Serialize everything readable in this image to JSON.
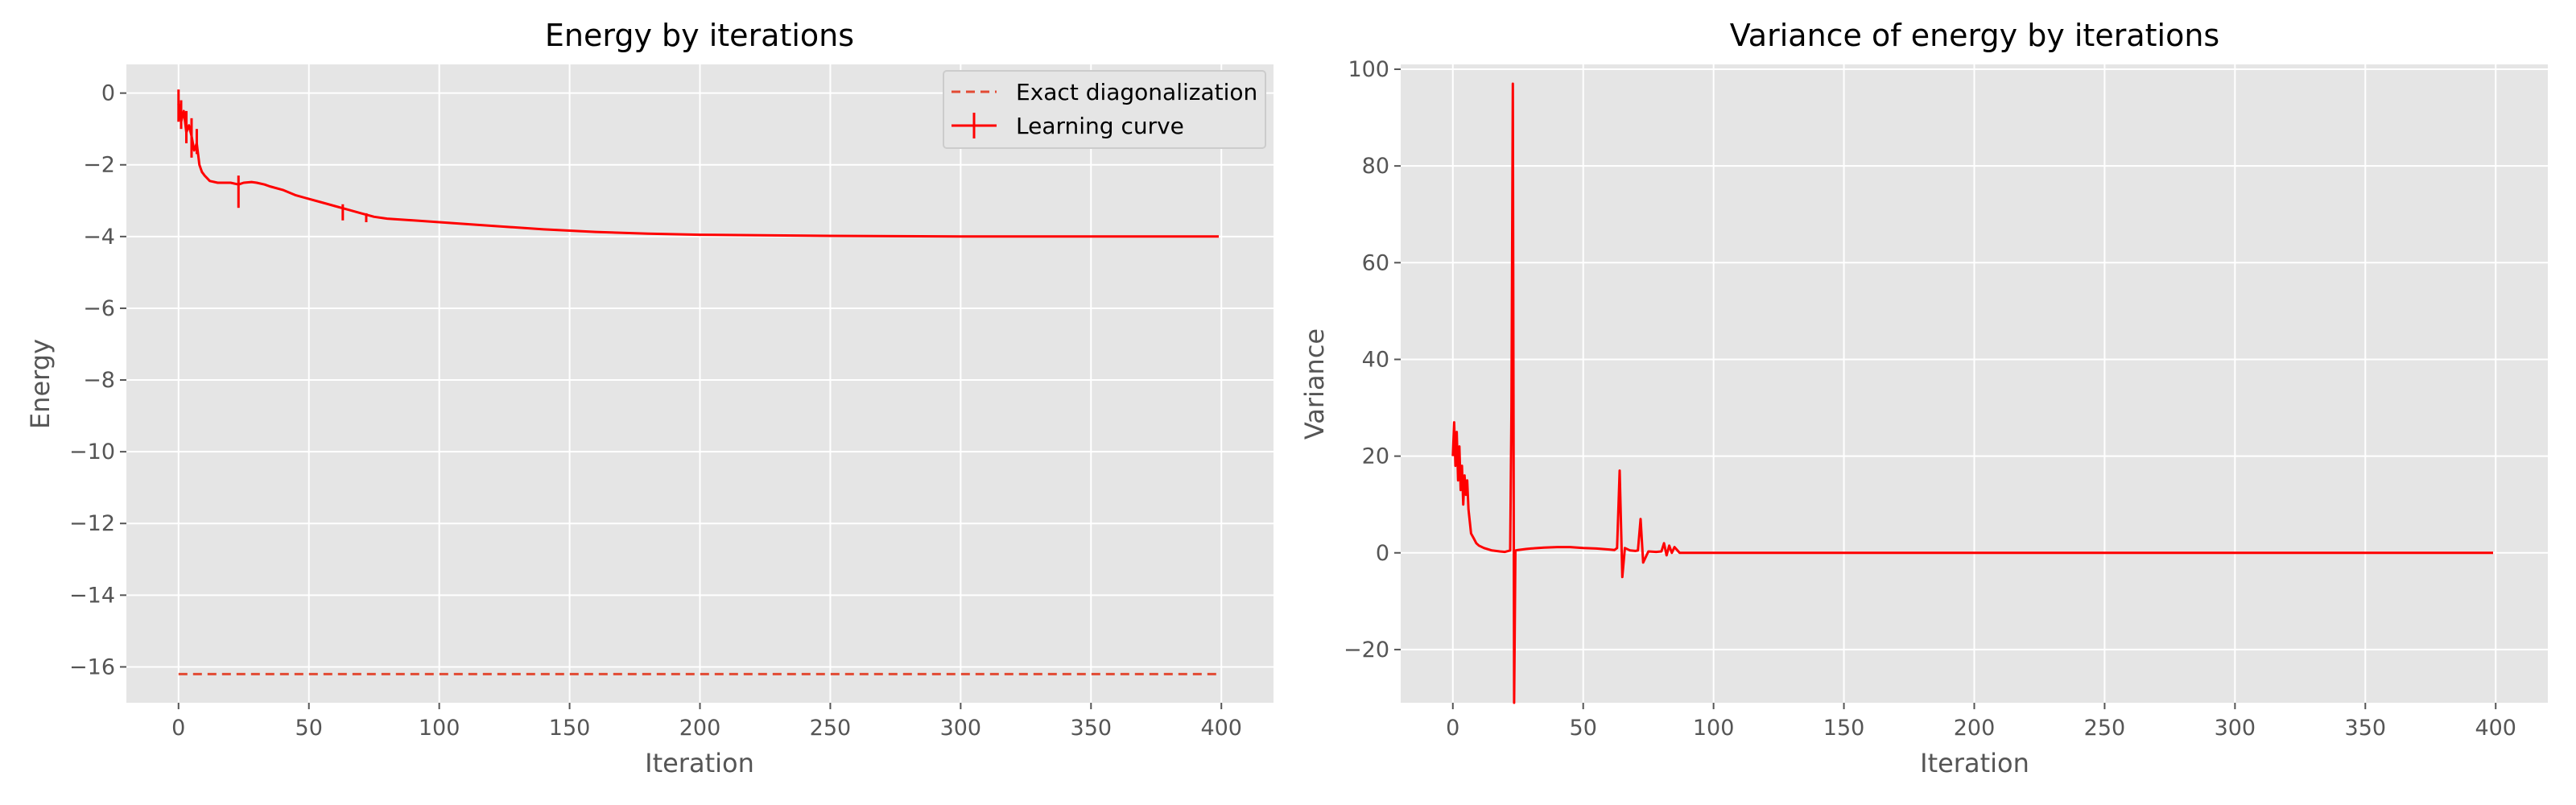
{
  "chart_data": [
    {
      "type": "line",
      "title": "Energy by iterations",
      "xlabel": "Iteration",
      "ylabel": "Energy",
      "xlim": [
        -20,
        420
      ],
      "ylim": [
        -17,
        0.8
      ],
      "xticks": [
        0,
        50,
        100,
        150,
        200,
        250,
        300,
        350,
        400
      ],
      "yticks": [
        0,
        -2,
        -4,
        -6,
        -8,
        -10,
        -12,
        -14,
        -16
      ],
      "grid": true,
      "legend": "top-right",
      "series": [
        {
          "name": "Exact diagonalization",
          "style": "dashed",
          "color": "#e24a33",
          "x": [
            0,
            399
          ],
          "y": [
            -16.2,
            -16.2
          ]
        },
        {
          "name": "Learning curve",
          "style": "solid-errorbar",
          "color": "#ff0000",
          "x": [
            0,
            1,
            2,
            3,
            4,
            5,
            6,
            7,
            8,
            9,
            10,
            12,
            15,
            18,
            20,
            23,
            25,
            28,
            30,
            33,
            35,
            40,
            45,
            50,
            55,
            60,
            65,
            70,
            75,
            80,
            90,
            100,
            120,
            140,
            160,
            180,
            200,
            250,
            300,
            350,
            399
          ],
          "y": [
            -0.3,
            -0.8,
            -0.5,
            -1.1,
            -0.9,
            -1.2,
            -1.6,
            -1.4,
            -2.0,
            -2.2,
            -2.3,
            -2.45,
            -2.5,
            -2.5,
            -2.5,
            -2.55,
            -2.5,
            -2.48,
            -2.5,
            -2.55,
            -2.6,
            -2.7,
            -2.85,
            -2.95,
            -3.05,
            -3.15,
            -3.25,
            -3.35,
            -3.45,
            -3.5,
            -3.55,
            -3.6,
            -3.7,
            -3.8,
            -3.87,
            -3.92,
            -3.95,
            -3.98,
            -4.0,
            -4.0,
            -4.0
          ],
          "errors": [
            {
              "x": 0,
              "lo": -0.8,
              "hi": 0.1
            },
            {
              "x": 1,
              "lo": -1.0,
              "hi": -0.2
            },
            {
              "x": 3,
              "lo": -1.4,
              "hi": -0.5
            },
            {
              "x": 5,
              "lo": -1.8,
              "hi": -0.7
            },
            {
              "x": 7,
              "lo": -1.7,
              "hi": -1.0
            },
            {
              "x": 23,
              "lo": -3.2,
              "hi": -2.3
            },
            {
              "x": 63,
              "lo": -3.55,
              "hi": -3.1
            },
            {
              "x": 72,
              "lo": -3.6,
              "hi": -3.35
            }
          ]
        }
      ]
    },
    {
      "type": "line",
      "title": "Variance of energy by iterations",
      "xlabel": "Iteration",
      "ylabel": "Variance",
      "xlim": [
        -20,
        420
      ],
      "ylim": [
        -31,
        101
      ],
      "xticks": [
        0,
        50,
        100,
        150,
        200,
        250,
        300,
        350,
        400
      ],
      "yticks": [
        100,
        80,
        60,
        40,
        20,
        0,
        -20
      ],
      "grid": true,
      "series": [
        {
          "style": "solid",
          "color": "#ff0000",
          "x": [
            0,
            0.5,
            1,
            1.5,
            2,
            2.5,
            3,
            3.5,
            4,
            4.5,
            5,
            5.5,
            6,
            7,
            8,
            9,
            10,
            12,
            15,
            18,
            20,
            22,
            22.5,
            23,
            23.5,
            24,
            25,
            28,
            30,
            35,
            40,
            45,
            50,
            55,
            60,
            62,
            63,
            64,
            65,
            66,
            68,
            70,
            71,
            72,
            73,
            75,
            78,
            80,
            81,
            82,
            83,
            84,
            85,
            87,
            90,
            95,
            100,
            110,
            150,
            200,
            300,
            399
          ],
          "y": [
            20,
            27,
            18,
            25,
            15,
            22,
            13,
            18,
            10,
            16,
            12,
            15,
            9,
            4,
            3,
            2,
            1.5,
            1.0,
            0.5,
            0.3,
            0.2,
            0.5,
            30,
            97,
            -31,
            0.5,
            0.6,
            0.8,
            0.9,
            1.1,
            1.2,
            1.2,
            1.0,
            0.9,
            0.7,
            0.6,
            1.0,
            17,
            -5,
            1.0,
            0.5,
            0.4,
            0.5,
            7,
            -2,
            0.3,
            0.2,
            0.3,
            2.0,
            -0.5,
            1.5,
            0.0,
            1.2,
            0.0,
            0.0,
            0.0,
            0.0,
            0.0,
            0.0,
            0.0,
            0.0,
            0.0
          ]
        }
      ]
    }
  ]
}
